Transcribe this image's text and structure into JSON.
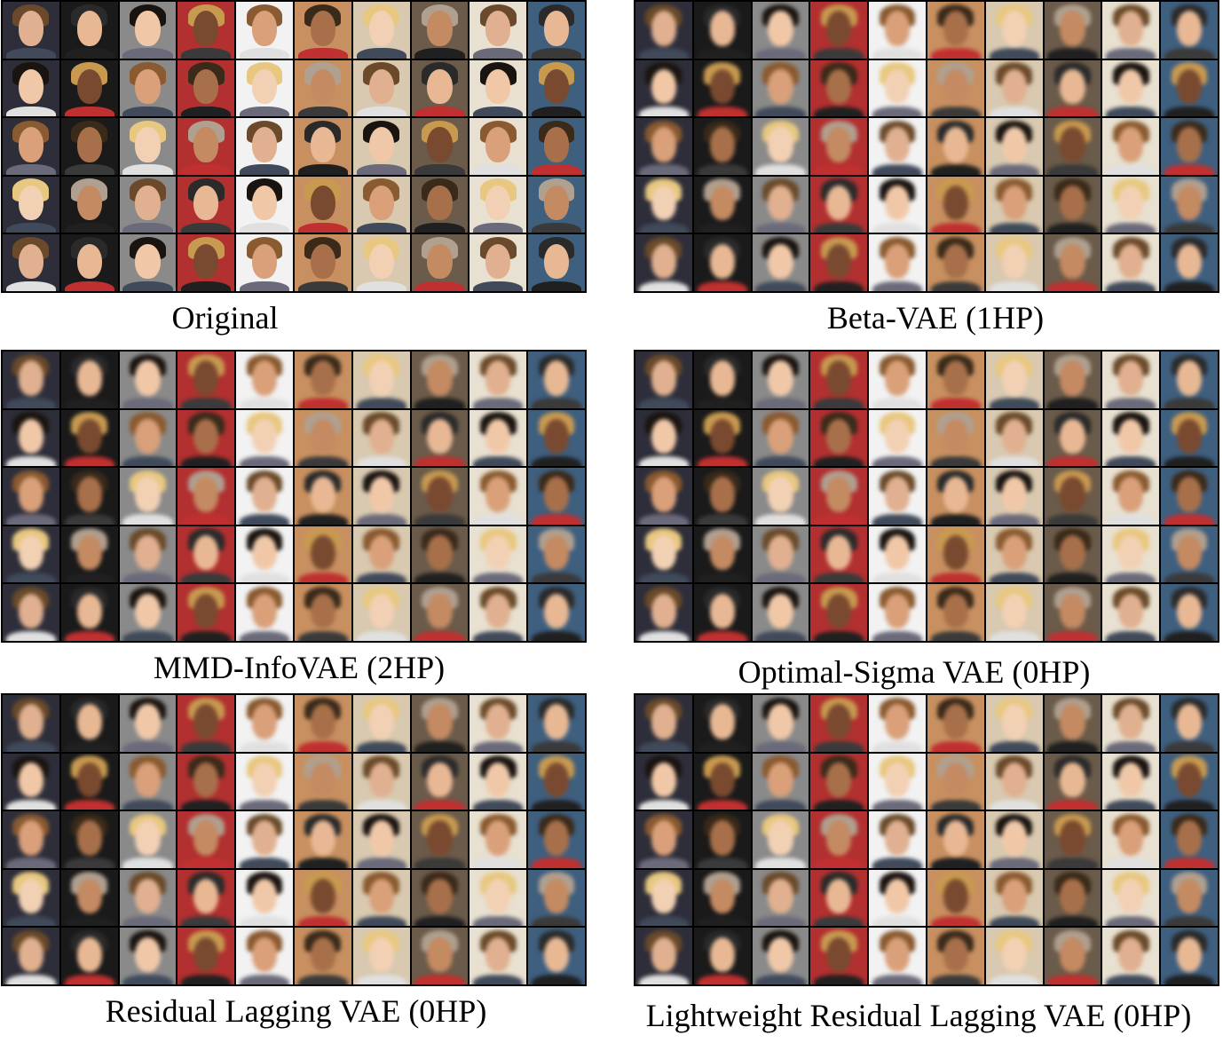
{
  "panels": [
    {
      "caption": "Original",
      "style": "sharp"
    },
    {
      "caption": "Beta-VAE  (1HP)",
      "style": "blurred"
    },
    {
      "caption": "MMD-InfoVAE  (2HP)",
      "style": "blurred"
    },
    {
      "caption": "Optimal-Sigma VAE (0HP)",
      "style": "blurred"
    },
    {
      "caption": "Residual Lagging VAE (0HP)",
      "style": "blurred"
    },
    {
      "caption": "Lightweight Residual Lagging VAE (0HP)",
      "style": "blurred"
    }
  ],
  "grid": {
    "rows": 5,
    "cols": 10
  },
  "palette": {
    "backgrounds": [
      "#1a1a1a",
      "#f2f2f2",
      "#6b5b4a",
      "#2e2e3a",
      "#b23030",
      "#d8c9b0",
      "#3f5f7f",
      "#8a8a8a",
      "#c89060",
      "#e8e0d0"
    ],
    "skin": [
      "#e8b894",
      "#d9a07a",
      "#c48a62",
      "#f0c8a8",
      "#a8704a",
      "#e0b090",
      "#7a4a30",
      "#f2d0b4"
    ],
    "hair": [
      "#1a1410",
      "#3a2a1a",
      "#6a4a2a",
      "#c89a50",
      "#e8c880",
      "#2a2a2a",
      "#8a5a30",
      "#b0a090"
    ],
    "clothes": [
      "#202020",
      "#404a5a",
      "#c03030",
      "#e0e0e0",
      "#3a3a3a",
      "#6a6a7a"
    ]
  }
}
